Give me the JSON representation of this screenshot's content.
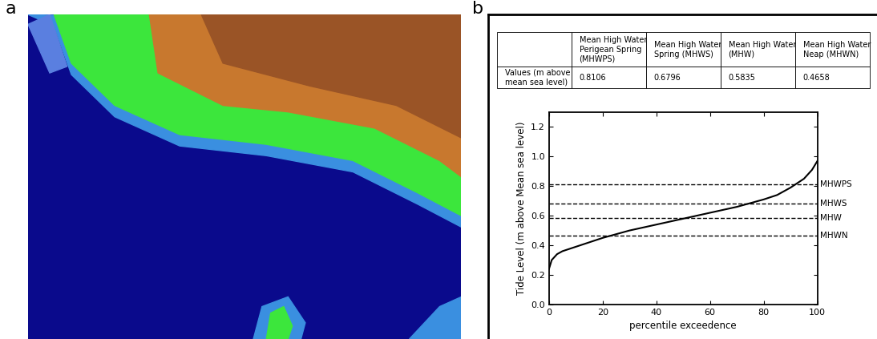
{
  "panel_labels": [
    "a",
    "b"
  ],
  "table": {
    "header": [
      "Mean High Water Perigean Spring (MHWPS)",
      "Mean High Water Spring (MHWS)",
      "Mean High Water (MHW)",
      "Mean High Water Neap (MHWN)"
    ],
    "rows": [
      [
        "Values (m above mean sea level)",
        0.8106,
        0.6796,
        0.5835,
        0.4658
      ]
    ]
  },
  "chart_data": {
    "type": "line",
    "x_label": "percentile exceedence",
    "y_label": "Tide Level (m above Mean sea level)",
    "x": [
      0,
      1,
      3,
      5,
      10,
      20,
      30,
      40,
      50,
      60,
      70,
      80,
      85,
      90,
      95,
      98,
      100
    ],
    "values": [
      0.24,
      0.3,
      0.34,
      0.36,
      0.39,
      0.45,
      0.5,
      0.54,
      0.58,
      0.62,
      0.66,
      0.71,
      0.74,
      0.79,
      0.85,
      0.91,
      0.97
    ],
    "color": "#000000",
    "xlim": [
      0,
      100
    ],
    "xticks": [
      0,
      20,
      40,
      60,
      80,
      100
    ],
    "ylim": [
      0,
      1.3
    ],
    "yticks": [
      {
        "value": 0.0,
        "label": "0.0"
      },
      {
        "value": 0.2,
        "label": "0.2"
      },
      {
        "value": 0.4,
        "label": "0.4"
      },
      {
        "value": 0.6,
        "label": "0.6"
      },
      {
        "value": 0.8,
        "label": "0.8"
      },
      {
        "value": 1.0,
        "label": "1.0"
      },
      {
        "value": 1.2,
        "label": "1.2"
      }
    ],
    "reference_lines": [
      {
        "name": "MHWPS",
        "value": 0.8106
      },
      {
        "name": "MHWS",
        "value": 0.6796
      },
      {
        "name": "MHW",
        "value": 0.5835
      },
      {
        "name": "MHWN",
        "value": 0.4658
      }
    ],
    "line_style": "dashed",
    "grid": false
  }
}
